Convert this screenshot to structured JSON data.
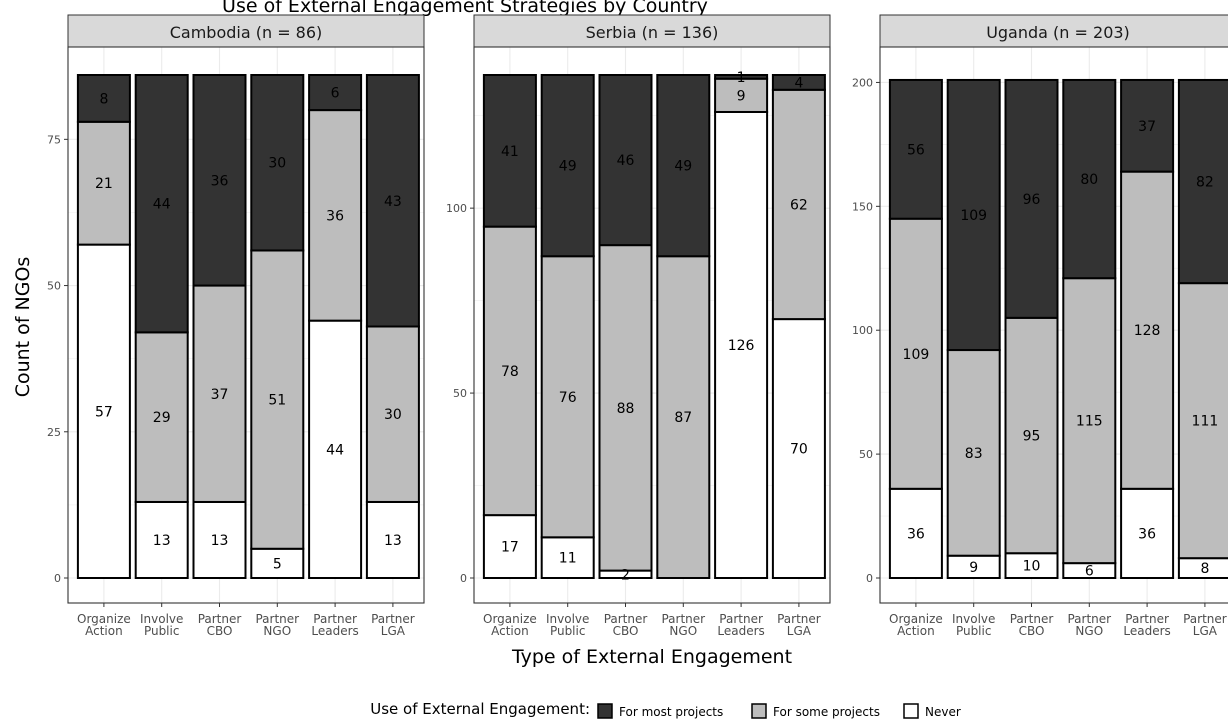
{
  "chart_data": {
    "type": "bar",
    "stacked": true,
    "title": "Use of External Engagement Strategies by Country",
    "xlabel": "Type of External Engagement",
    "ylabel": "Count of NGOs",
    "categories": [
      "Organize\nAction",
      "Involve\nPublic",
      "Partner\nCBO",
      "Partner\nNGO",
      "Partner\nLeaders",
      "Partner\nLGA"
    ],
    "legend": {
      "title": "Use of External Engagement:",
      "position": "bottom",
      "entries": [
        {
          "label": "For most projects",
          "color": "#333333"
        },
        {
          "label": "For some projects",
          "color": "#bdbdbd"
        },
        {
          "label": "Never",
          "color": "#ffffff"
        }
      ]
    },
    "panels": [
      {
        "strip": "Cambodia (n = 86)",
        "ylim": [
          0,
          86
        ],
        "yticks": [
          0,
          25,
          50,
          75
        ],
        "series": [
          {
            "name": "Never",
            "values": [
              57,
              13,
              13,
              5,
              44,
              13
            ]
          },
          {
            "name": "For some projects",
            "values": [
              21,
              29,
              37,
              51,
              36,
              30
            ]
          },
          {
            "name": "For most projects",
            "values": [
              8,
              44,
              36,
              30,
              6,
              43
            ]
          }
        ]
      },
      {
        "strip": "Serbia (n = 136)",
        "ylim": [
          0,
          136
        ],
        "yticks": [
          0,
          50,
          100
        ],
        "series": [
          {
            "name": "Never",
            "values": [
              17,
              11,
              2,
              0,
              126,
              70
            ]
          },
          {
            "name": "For some projects",
            "values": [
              78,
              76,
              88,
              87,
              9,
              62
            ]
          },
          {
            "name": "For most projects",
            "values": [
              41,
              49,
              46,
              49,
              1,
              4
            ]
          }
        ]
      },
      {
        "strip": "Uganda (n = 203)",
        "ylim": [
          0,
          203
        ],
        "yticks": [
          0,
          50,
          100,
          150,
          200
        ],
        "series": [
          {
            "name": "Never",
            "values": [
              36,
              9,
              10,
              6,
              36,
              8
            ]
          },
          {
            "name": "For some projects",
            "values": [
              109,
              83,
              95,
              115,
              128,
              111
            ]
          },
          {
            "name": "For most projects",
            "values": [
              56,
              109,
              96,
              80,
              37,
              82
            ]
          }
        ]
      }
    ]
  }
}
